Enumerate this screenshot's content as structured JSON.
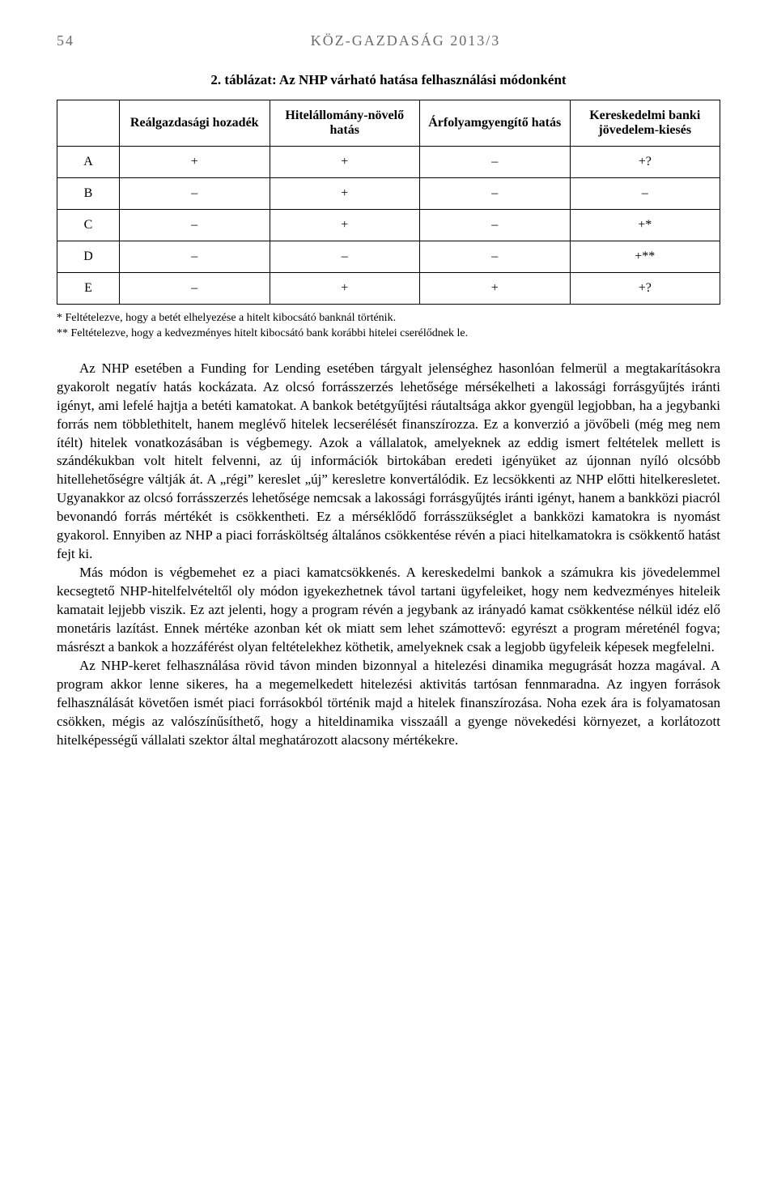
{
  "header": {
    "page_number": "54",
    "running_head": "KÖZ-GAZDASÁG 2013/3"
  },
  "table": {
    "caption": "2. táblázat: Az NHP várható hatása felhasználási módonként",
    "columns": [
      "",
      "Reálgazdasági hozadék",
      "Hitelállomány-növelő hatás",
      "Árfolyamgyengítő hatás",
      "Kereskedelmi banki jövedelem-kiesés"
    ],
    "rows": [
      [
        "A",
        "+",
        "+",
        "–",
        "+?"
      ],
      [
        "B",
        "–",
        "+",
        "–",
        "–"
      ],
      [
        "C",
        "–",
        "+",
        "–",
        "+*"
      ],
      [
        "D",
        "–",
        "–",
        "–",
        "+**"
      ],
      [
        "E",
        "–",
        "+",
        "+",
        "+?"
      ]
    ],
    "border_color": "#000000",
    "font_size": 16
  },
  "footnotes": {
    "f1": "* Feltételezve, hogy a betét elhelyezése a hitelt kibocsátó banknál történik.",
    "f2": "** Feltételezve, hogy a kedvezményes hitelt kibocsátó bank korábbi hitelei cserélődnek le."
  },
  "paragraphs": {
    "p1": "Az NHP esetében a Funding for Lending esetében tárgyalt jelenséghez hasonlóan felmerül a megtakarításokra gyakorolt negatív hatás kockázata. Az olcsó forrásszerzés lehetősége mérsékelheti a lakossági forrásgyűjtés iránti igényt, ami lefelé hajtja a betéti kamatokat. A bankok betétgyűjtési ráutaltsága akkor gyengül legjobban, ha a jegybanki forrás nem többlethitelt, hanem meglévő hitelek lecserélését finanszírozza. Ez a konverzió a jövőbeli (még meg nem ítélt) hitelek vonatkozásában is végbemegy. Azok a vállalatok, amelyeknek az eddig ismert feltételek mellett is szándékukban volt hitelt felvenni, az új információk birtokában eredeti igényüket az újonnan nyíló olcsóbb hitellehetőségre váltják át. A „régi” kereslet „új” keresletre konvertálódik. Ez lecsökkenti az NHP előtti hitelkeresletet. Ugyanakkor az olcsó forrásszerzés lehetősége nemcsak a lakossági forrásgyűjtés iránti igényt, hanem a bankközi piacról bevonandó forrás mértékét is csökkentheti. Ez a mérséklődő forrásszükséglet a bankközi kamatokra is nyomást gyakorol. Ennyiben az NHP a piaci forrásköltség általános csökkentése révén a piaci hitelkamatokra is csökkentő hatást fejt ki.",
    "p2": "Más módon is végbemehet ez a piaci kamatcsökkenés. A kereskedelmi bankok a számukra kis jövedelemmel kecsegtető NHP-hitelfelvételtől oly módon igyekezhetnek távol tartani ügyfeleiket, hogy nem kedvezményes hiteleik kamatait lejjebb viszik. Ez azt jelenti, hogy a program révén a jegybank az irányadó kamat csökkentése nélkül idéz elő monetáris lazítást. Ennek mértéke azonban két ok miatt sem lehet számottevő: egyrészt a program méreténél fogva; másrészt a bankok a hozzáférést olyan feltételekhez köthetik, amelyeknek csak a legjobb ügyfeleik képesek megfelelni.",
    "p3": "Az NHP-keret felhasználása rövid távon minden bizonnyal a hitelezési dinamika megugrását hozza magával. A program akkor lenne sikeres, ha a megemelkedett hitelezési aktivitás tartósan fennmaradna. Az ingyen források felhasználását követően ismét piaci forrásokból történik majd a hitelek finanszírozása. Noha ezek ára is folyamatosan csökken, mégis az valószínűsíthető, hogy a hiteldinamika visszaáll a gyenge növekedési környezet, a korlátozott hitelképességű vállalati szektor által meghatározott alacsony mértékekre."
  },
  "style": {
    "background_color": "#ffffff",
    "text_color": "#000000",
    "header_color": "#6b6b6b",
    "body_font_size": 17
  }
}
